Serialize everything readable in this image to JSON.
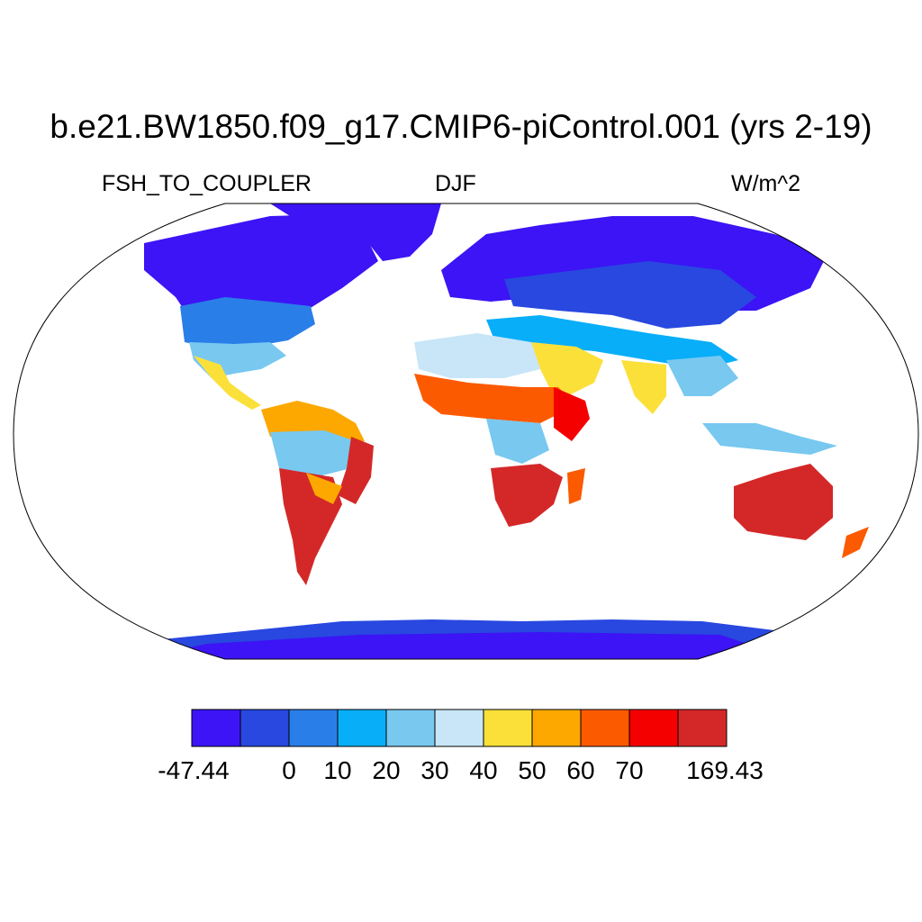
{
  "title": "b.e21.BW1850.f09_g17.CMIP6-piControl.001 (yrs 2-19)",
  "left_label": "FSH_TO_COUPLER",
  "center_label": "DJF",
  "right_label": "W/m^2",
  "colorbar": {
    "colors": [
      "#3c14f5",
      "#2848e0",
      "#2a7ee8",
      "#08aef8",
      "#78c8f0",
      "#c8e6f8",
      "#fce03a",
      "#fca800",
      "#fc5a00",
      "#f40000",
      "#d42828"
    ],
    "labels": [
      "-47.44",
      "0",
      "10",
      "20",
      "30",
      "40",
      "50",
      "60",
      "70",
      "169.43"
    ]
  }
}
